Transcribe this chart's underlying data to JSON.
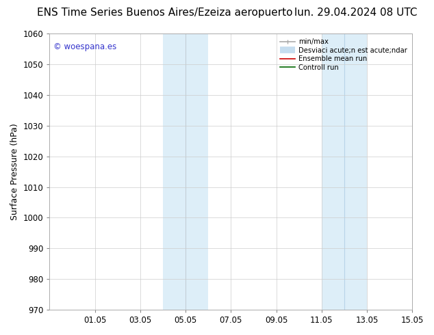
{
  "title_left": "ENS Time Series Buenos Aires/Ezeiza aeropuerto",
  "title_right": "lun. 29.04.2024 08 UTC",
  "ylabel": "Surface Pressure (hPa)",
  "ylim": [
    970,
    1060
  ],
  "yticks": [
    970,
    980,
    990,
    1000,
    1010,
    1020,
    1030,
    1040,
    1050,
    1060
  ],
  "xlim": [
    0,
    16
  ],
  "xtick_labels": [
    "01.05",
    "03.05",
    "05.05",
    "07.05",
    "09.05",
    "11.05",
    "13.05",
    "15.05"
  ],
  "xtick_positions": [
    2,
    4,
    6,
    8,
    10,
    12,
    14,
    16
  ],
  "watermark": "© woespana.es",
  "watermark_color": "#3333cc",
  "shaded_regions": [
    {
      "xstart": 5,
      "xend": 6,
      "color": "#ddeef8"
    },
    {
      "xstart": 6,
      "xend": 7,
      "color": "#ddeef8"
    },
    {
      "xstart": 12,
      "xend": 13,
      "color": "#ddeef8"
    },
    {
      "xstart": 13,
      "xend": 14,
      "color": "#ddeef8"
    }
  ],
  "divider_lines": [
    6,
    13
  ],
  "divider_color": "#b8d4e8",
  "bg_color": "#ffffff",
  "plot_bg_color": "#ffffff",
  "grid_color": "#cccccc",
  "title_fontsize": 11,
  "axis_label_fontsize": 9,
  "tick_fontsize": 8.5,
  "legend_labels": [
    "min/max",
    "Desviaci acute;n est acute;ndar",
    "Ensemble mean run",
    "Controll run"
  ],
  "legend_colors": [
    "#aaaaaa",
    "#c5ddef",
    "#cc0000",
    "#006600"
  ],
  "legend_lws": [
    1.2,
    7,
    1.2,
    1.2
  ]
}
